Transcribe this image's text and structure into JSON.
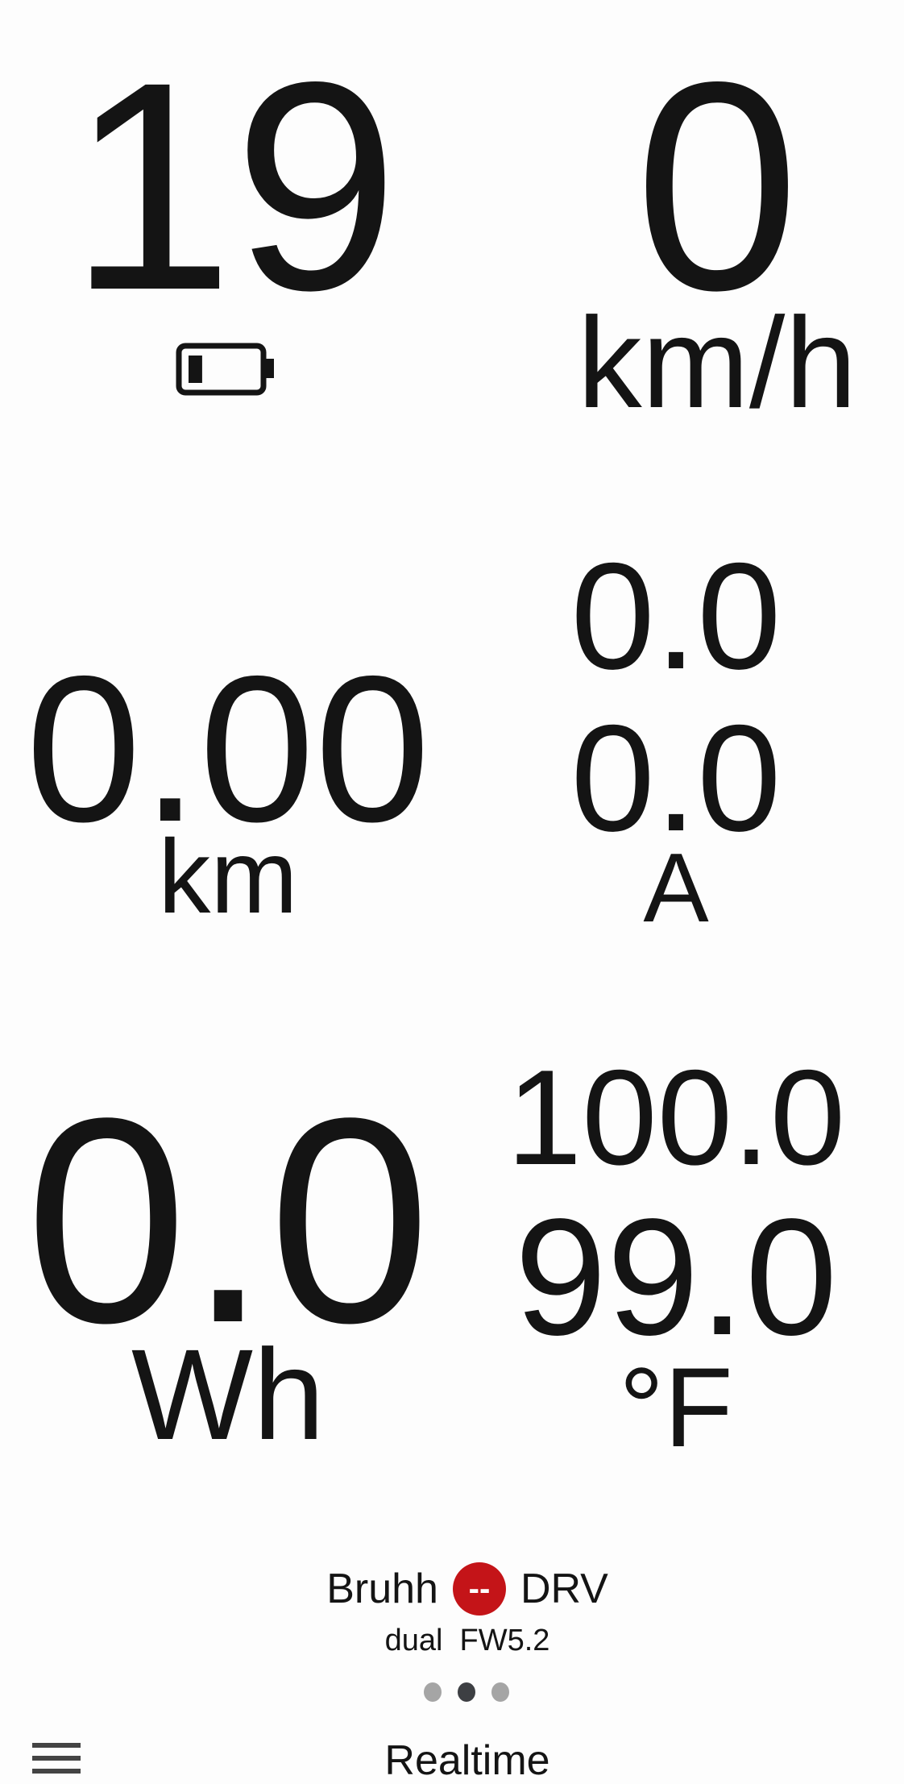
{
  "battery": {
    "percent_text": "19",
    "level_fraction": 0.1,
    "icon": "battery-low-icon"
  },
  "speed": {
    "value": "0",
    "unit": "km/h"
  },
  "distance": {
    "value": "0.00",
    "unit": "km"
  },
  "current": {
    "value_1": "0.0",
    "value_2": "0.0",
    "unit": "A"
  },
  "energy": {
    "value": "0.0",
    "unit": "Wh"
  },
  "temperature": {
    "value_1": "100.0",
    "value_2": "99.0",
    "unit": "°F"
  },
  "device": {
    "name": "Bruhh",
    "status_badge": "--",
    "mode": "DRV",
    "status_color": "#c41418",
    "info": "dual  FW5.2"
  },
  "pager": {
    "count": 3,
    "active_index": 1
  },
  "bottom_bar": {
    "title": "Realtime",
    "menu_icon": "hamburger-menu-icon"
  }
}
